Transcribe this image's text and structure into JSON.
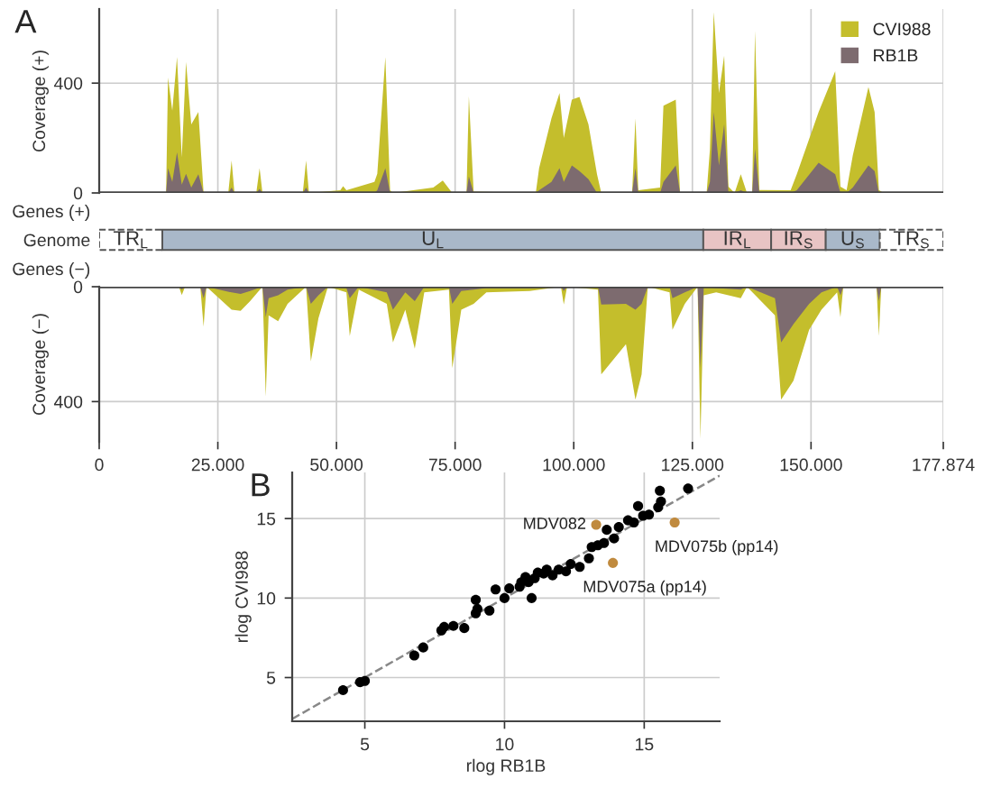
{
  "chart_data": [
    {
      "type": "area",
      "ylabel": "Coverage (+)",
      "annotations": [
        "A"
      ],
      "xlim": [
        0,
        177874
      ],
      "ylim": [
        0,
        670
      ],
      "yticks": [
        0,
        400
      ],
      "xticks": [
        {
          "value": 0,
          "label": null
        },
        {
          "value": 25000,
          "label": null
        },
        {
          "value": 50000,
          "label": null
        },
        {
          "value": 75000,
          "label": null
        },
        {
          "value": 100000,
          "label": null
        },
        {
          "value": 125000,
          "label": null
        },
        {
          "value": 150000,
          "label": null
        },
        {
          "value": 177874,
          "label": null
        }
      ],
      "tick_labels": "y",
      "grid": true,
      "legend": "top right",
      "x": [
        0,
        14100,
        14500,
        15400,
        16400,
        17400,
        18300,
        19400,
        20900,
        22000,
        22600,
        27200,
        27900,
        28500,
        33100,
        33800,
        34400,
        42900,
        43600,
        44200,
        50800,
        51400,
        52100,
        58000,
        58600,
        60300,
        61300,
        61900,
        70400,
        72400,
        74400,
        77400,
        77900,
        78900,
        92000,
        92700,
        95300,
        97000,
        97900,
        99600,
        101200,
        103100,
        104900,
        105800,
        112300,
        113000,
        113600,
        118200,
        118900,
        121500,
        122400,
        128000,
        128700,
        129500,
        130600,
        131700,
        132600,
        133900,
        135200,
        136500,
        137600,
        138200,
        139100,
        145700,
        147000,
        151600,
        155100,
        156200,
        157500,
        158800,
        162100,
        163400,
        164300,
        165300,
        177000
      ],
      "series": [
        {
          "name": "CVI988",
          "color": "#c4be2c",
          "values": [
            0,
            0,
            420,
            300,
            495,
            130,
            477,
            250,
            295,
            0,
            0,
            0,
            118,
            0,
            0,
            90,
            0,
            0,
            118,
            0,
            10,
            25,
            10,
            40,
            70,
            495,
            10,
            0,
            20,
            45,
            0,
            0,
            352,
            5,
            0,
            90,
            272,
            364,
            200,
            340,
            350,
            250,
            68,
            0,
            0,
            272,
            10,
            20,
            318,
            340,
            0,
            0,
            160,
            659,
            364,
            500,
            23,
            0,
            68,
            0,
            0,
            590,
            11,
            10,
            68,
            295,
            443,
            23,
            10,
            136,
            386,
            295,
            11,
            0,
            0
          ]
        },
        {
          "name": "RB1B",
          "color": "#7d6b6f",
          "values": [
            0,
            0,
            90,
            40,
            148,
            30,
            70,
            20,
            68,
            0,
            0,
            0,
            20,
            0,
            0,
            15,
            0,
            0,
            20,
            0,
            0,
            5,
            0,
            0,
            10,
            90,
            0,
            0,
            0,
            0,
            0,
            0,
            60,
            0,
            0,
            10,
            40,
            90,
            40,
            100,
            80,
            50,
            0,
            0,
            0,
            90,
            0,
            0,
            40,
            100,
            0,
            0,
            40,
            295,
            100,
            250,
            0,
            0,
            10,
            0,
            0,
            160,
            0,
            0,
            10,
            110,
            68,
            0,
            0,
            20,
            100,
            80,
            0,
            0,
            0
          ]
        }
      ]
    },
    {
      "type": "bar",
      "orientation": "horizontal",
      "categories": [
        "Genes (+)",
        "Genome",
        "Genes (−)"
      ],
      "xlim": [
        0,
        177874
      ],
      "tick_labels": "y",
      "series": [
        {
          "name": "TR$_{L}$",
          "color": "#ffffff",
          "line_style": "dashed",
          "base": [
            null,
            0,
            null
          ],
          "values": [
            null,
            13300,
            null
          ]
        },
        {
          "name": "U$_{L}$",
          "color": "#a9b8c9",
          "base": [
            null,
            13300,
            null
          ],
          "values": [
            null,
            114000,
            null
          ]
        },
        {
          "name": "IR$_{L}$",
          "color": "#e8c4c4",
          "base": [
            null,
            127300,
            null
          ],
          "values": [
            null,
            14300,
            null
          ]
        },
        {
          "name": "IR$_{S}$",
          "color": "#e8c4c4",
          "base": [
            null,
            141600,
            null
          ],
          "values": [
            null,
            11500,
            null
          ]
        },
        {
          "name": "U$_{S}$",
          "color": "#a9b8c9",
          "base": [
            null,
            153100,
            null
          ],
          "values": [
            null,
            11400,
            null
          ]
        },
        {
          "name": "TR$_{S}$",
          "color": "#ffffff",
          "line_style": "dashed",
          "base": [
            null,
            164500,
            null
          ],
          "values": [
            null,
            13374,
            null
          ]
        }
      ]
    },
    {
      "type": "area",
      "ylabel": "Coverage (−)",
      "xlim": [
        0,
        177874
      ],
      "ylim": [
        540,
        0
      ],
      "yticks": [
        0,
        400
      ],
      "xticks": [
        0,
        {
          "value": 25000,
          "label": "25.000"
        },
        {
          "value": 50000,
          "label": "50.000"
        },
        {
          "value": 75000,
          "label": "75.000"
        },
        {
          "value": 100000,
          "label": "100.000"
        },
        {
          "value": 125000,
          "label": "125.000"
        },
        {
          "value": 150000,
          "label": "150.000"
        },
        {
          "value": 177874,
          "label": "177.874"
        }
      ],
      "grid": true,
      "x": [
        0,
        16800,
        17400,
        18100,
        21300,
        22000,
        22600,
        27900,
        29800,
        31800,
        34400,
        35100,
        35700,
        37700,
        39700,
        43600,
        44600,
        46200,
        48200,
        52100,
        52800,
        54700,
        60600,
        61900,
        64500,
        66500,
        68500,
        73700,
        74400,
        76300,
        78900,
        81600,
        90700,
        97300,
        97900,
        98600,
        105100,
        105800,
        111000,
        113000,
        114300,
        115600,
        120200,
        120800,
        123400,
        126100,
        126700,
        127400,
        130000,
        135200,
        136500,
        142400,
        143700,
        146300,
        149600,
        152200,
        155500,
        156200,
        156800,
        163800,
        164300,
        164800,
        177000
      ],
      "series": [
        {
          "color": "#c4be2c",
          "values": [
            0,
            0,
            29,
            0,
            0,
            139,
            0,
            80,
            84,
            50,
            0,
            382,
            100,
            120,
            60,
            0,
            260,
            110,
            0,
            20,
            172,
            10,
            60,
            194,
            80,
            216,
            20,
            10,
            283,
            80,
            60,
            20,
            15,
            0,
            62,
            0,
            10,
            305,
            200,
            393,
            305,
            0,
            20,
            150,
            60,
            0,
            530,
            30,
            20,
            40,
            0,
            100,
            393,
            327,
            150,
            80,
            20,
            106,
            0,
            0,
            172,
            0,
            0
          ]
        },
        {
          "color": "#7d6b6f",
          "values": [
            0,
            0,
            10,
            0,
            0,
            40,
            0,
            20,
            25,
            15,
            0,
            106,
            40,
            30,
            10,
            0,
            60,
            30,
            0,
            5,
            40,
            0,
            20,
            80,
            20,
            50,
            0,
            0,
            60,
            15,
            10,
            5,
            5,
            0,
            15,
            0,
            0,
            62,
            60,
            80,
            60,
            0,
            0,
            40,
            20,
            0,
            283,
            0,
            5,
            10,
            0,
            40,
            194,
            130,
            60,
            20,
            0,
            30,
            0,
            0,
            50,
            0,
            0
          ]
        }
      ]
    },
    {
      "type": "scatter",
      "xlabel": "rlog RB1B",
      "ylabel": "rlog CVI988",
      "xlim": [
        2.4,
        17.7
      ],
      "ylim": [
        2.25,
        17.9
      ],
      "xticks": [
        5,
        10,
        15
      ],
      "yticks": [
        5,
        10,
        15
      ],
      "grid": true,
      "marker": "circle",
      "annotations": [
        "B",
        {
          "text": "MDV082",
          "x": 13.28,
          "y": 14.61
        },
        {
          "text": "MDV075b (pp14)",
          "x": 16.09,
          "y": 14.75
        },
        {
          "text": "MDV075a (pp14)",
          "x": 13.88,
          "y": 12.21
        }
      ],
      "series": [
        {
          "type": "line",
          "color": "#888888",
          "line_style": "dashed",
          "marker": "none",
          "x": [
            2.4,
            17.7
          ],
          "values": [
            2.4,
            17.7
          ]
        },
        {
          "color": "#000000",
          "x": [
            4.22,
            4.83,
            5.0,
            6.77,
            7.09,
            7.74,
            7.84,
            8.17,
            8.56,
            8.97,
            8.97,
            9.03,
            9.46,
            9.68,
            10.0,
            10.17,
            10.54,
            10.6,
            10.75,
            10.97,
            10.86,
            11.08,
            11.19,
            11.4,
            11.51,
            11.72,
            11.94,
            12.2,
            12.37,
            12.69,
            13.02,
            13.12,
            13.34,
            13.56,
            13.66,
            13.92,
            14.09,
            14.42,
            14.63,
            14.78,
            14.96,
            15.17,
            15.5,
            15.56,
            15.6,
            16.57
          ],
          "values": [
            4.21,
            4.71,
            4.79,
            6.39,
            6.89,
            7.96,
            8.18,
            8.25,
            8.11,
            9.89,
            9.04,
            9.32,
            9.21,
            10.54,
            10.0,
            10.61,
            10.71,
            11.0,
            11.32,
            10.0,
            11.0,
            11.25,
            11.6,
            11.54,
            11.79,
            11.43,
            11.79,
            11.68,
            12.14,
            11.96,
            12.5,
            13.21,
            13.32,
            13.46,
            14.29,
            13.75,
            14.46,
            14.89,
            14.75,
            15.79,
            15.18,
            15.25,
            15.71,
            16.75,
            16.07,
            16.89
          ]
        },
        {
          "color": "#c08a3e",
          "x": [
            13.28,
            16.09,
            13.88
          ],
          "values": [
            14.61,
            14.75,
            12.21
          ]
        }
      ]
    }
  ]
}
